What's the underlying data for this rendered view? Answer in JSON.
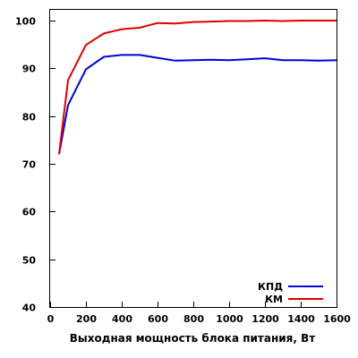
{
  "chart_data": {
    "type": "line",
    "title": "",
    "xlabel": "Выходная мощность блока питания, Вт",
    "ylabel": "",
    "xlim": [
      0,
      1600
    ],
    "ylim": [
      40,
      100
    ],
    "x_ticks": [
      0,
      200,
      400,
      600,
      800,
      1000,
      1200,
      1400,
      1600
    ],
    "y_ticks": [
      40,
      50,
      60,
      70,
      80,
      90,
      100
    ],
    "grid": false,
    "legend_position": "bottom-right",
    "x": [
      50,
      100,
      200,
      300,
      400,
      500,
      600,
      700,
      800,
      900,
      1000,
      1100,
      1200,
      1300,
      1400,
      1500,
      1600
    ],
    "series": [
      {
        "name": "КПД",
        "color": "#0000dd",
        "values": [
          72.0,
          82.3,
          89.8,
          92.4,
          92.8,
          92.8,
          92.2,
          91.6,
          91.7,
          91.8,
          91.7,
          91.9,
          92.1,
          91.7,
          91.7,
          91.6,
          91.7
        ]
      },
      {
        "name": "КМ",
        "color": "#dd0000",
        "values": [
          72.0,
          87.5,
          94.9,
          97.3,
          98.2,
          98.5,
          99.5,
          99.4,
          99.7,
          99.8,
          99.9,
          99.9,
          100.0,
          99.9,
          100.0,
          100.0,
          100.0
        ]
      }
    ]
  }
}
